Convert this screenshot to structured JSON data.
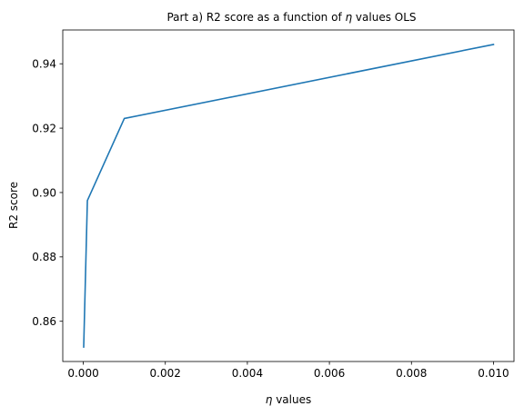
{
  "chart_data": {
    "type": "line",
    "title_prefix": "Part a) R2 score as a function of ",
    "title_symbol": "η",
    "title_suffix": " values OLS",
    "xlabel_symbol": "η",
    "xlabel_suffix": " values",
    "ylabel": "R2 score",
    "xlim": [
      -0.0005,
      0.0105
    ],
    "ylim": [
      0.8475,
      0.9505
    ],
    "xticks": [
      0.0,
      0.002,
      0.004,
      0.006,
      0.008,
      0.01
    ],
    "xtick_labels": [
      "0.000",
      "0.002",
      "0.004",
      "0.006",
      "0.008",
      "0.010"
    ],
    "yticks": [
      0.86,
      0.88,
      0.9,
      0.92,
      0.94
    ],
    "ytick_labels": [
      "0.86",
      "0.88",
      "0.90",
      "0.92",
      "0.94"
    ],
    "grid": false,
    "series": [
      {
        "color": "#1f77b4",
        "x": [
          1e-05,
          0.0001,
          0.001,
          0.01
        ],
        "y": [
          0.852,
          0.8975,
          0.923,
          0.946
        ]
      }
    ]
  }
}
